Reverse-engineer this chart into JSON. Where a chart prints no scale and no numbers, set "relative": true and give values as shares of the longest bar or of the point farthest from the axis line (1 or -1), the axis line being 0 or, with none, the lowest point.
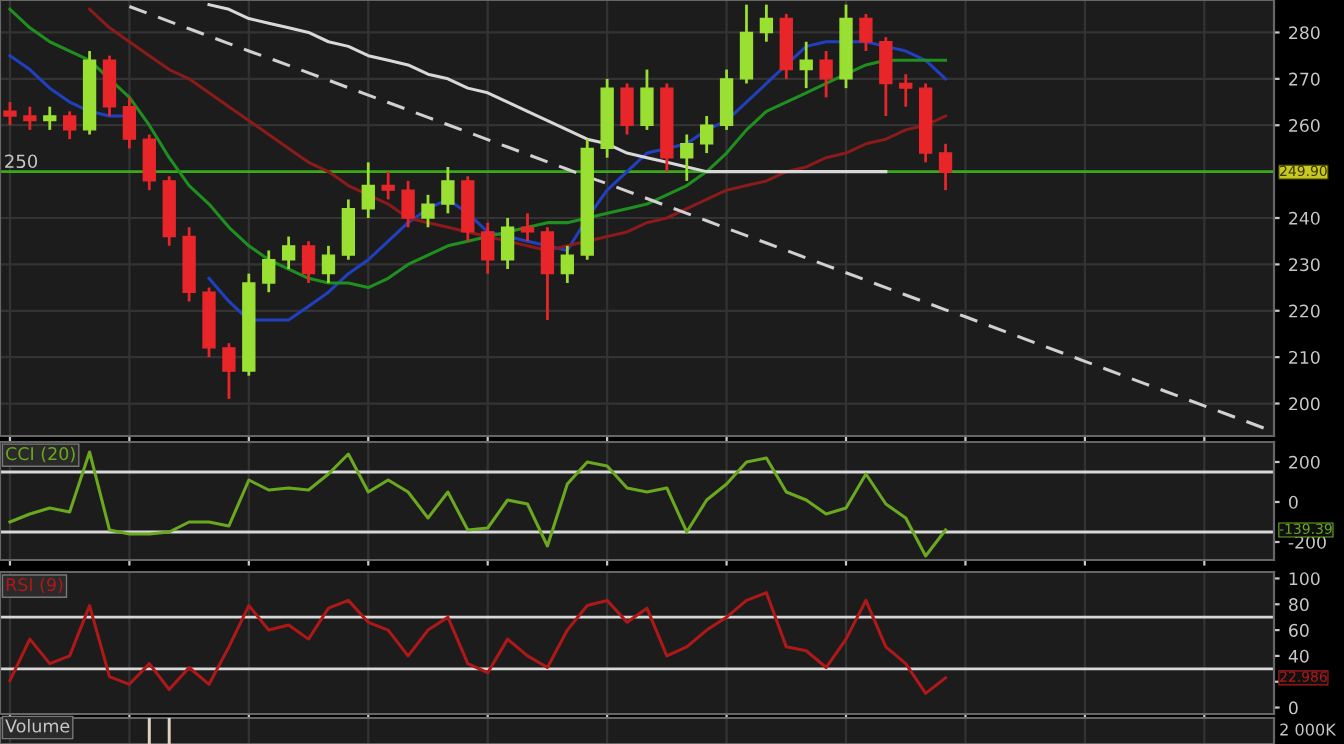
{
  "chart_data": [
    {
      "type": "candlestick",
      "categories": [
        null,
        null,
        null,
        null,
        null,
        null,
        null,
        null,
        null,
        null,
        null,
        null,
        null,
        null,
        null,
        null,
        null,
        null,
        null,
        null,
        null,
        null,
        null,
        null,
        null,
        null,
        null,
        null,
        null,
        null,
        null,
        null,
        null,
        null,
        null,
        null,
        null,
        null,
        null,
        null,
        null,
        null,
        null,
        null,
        null,
        null,
        null,
        null,
        null,
        null,
        null,
        null,
        null,
        null,
        null,
        null,
        null,
        null,
        null,
        null,
        null,
        null,
        null,
        null
      ],
      "ohlc": [
        [
          263,
          265,
          260,
          262
        ],
        [
          262,
          264,
          259,
          261
        ],
        [
          261,
          264,
          259,
          262
        ],
        [
          262,
          263,
          257,
          259
        ],
        [
          259,
          276,
          258,
          274
        ],
        [
          274,
          275,
          262,
          264
        ],
        [
          264,
          266,
          255,
          257
        ],
        [
          257,
          258,
          246,
          248
        ],
        [
          248,
          249,
          234,
          236
        ],
        [
          236,
          238,
          222,
          224
        ],
        [
          224,
          225,
          210,
          212
        ],
        [
          212,
          213,
          201,
          207
        ],
        [
          207,
          228,
          206,
          226
        ],
        [
          226,
          233,
          224,
          231
        ],
        [
          231,
          236,
          229,
          234
        ],
        [
          234,
          235,
          226,
          228
        ],
        [
          228,
          234,
          226,
          232
        ],
        [
          232,
          244,
          231,
          242
        ],
        [
          242,
          252,
          240,
          247
        ],
        [
          247,
          250,
          244,
          246
        ],
        [
          246,
          248,
          238,
          240
        ],
        [
          240,
          245,
          238,
          243
        ],
        [
          243,
          251,
          241,
          248
        ],
        [
          248,
          249,
          235,
          237
        ],
        [
          237,
          239,
          228,
          231
        ],
        [
          231,
          240,
          229,
          238
        ],
        [
          238,
          241,
          235,
          237
        ],
        [
          237,
          238,
          218,
          228
        ],
        [
          228,
          234,
          226,
          232
        ],
        [
          232,
          257,
          231,
          255
        ],
        [
          255,
          270,
          253,
          268
        ],
        [
          268,
          269,
          258,
          260
        ],
        [
          260,
          272,
          259,
          268
        ],
        [
          268,
          269,
          250,
          253
        ],
        [
          253,
          258,
          248,
          256
        ],
        [
          256,
          262,
          254,
          260
        ],
        [
          260,
          272,
          259,
          270
        ],
        [
          270,
          286,
          269,
          280
        ],
        [
          280,
          286,
          278,
          283
        ],
        [
          283,
          284,
          270,
          272
        ],
        [
          272,
          278,
          268,
          274
        ],
        [
          274,
          276,
          266,
          270
        ],
        [
          270,
          286,
          268,
          283
        ],
        [
          283,
          284,
          276,
          278
        ],
        [
          278,
          279,
          262,
          269
        ],
        [
          269,
          271,
          264,
          268
        ],
        [
          268,
          269,
          252,
          254
        ],
        [
          254,
          256,
          246,
          249.9
        ],
        null,
        null,
        null,
        null,
        null,
        null,
        null,
        null,
        null,
        null,
        null,
        null,
        null,
        null,
        null,
        null
      ],
      "colors": [
        "#e8262a",
        "#e8262a",
        "#99e033",
        "#e8262a",
        "#99e033",
        "#e8262a",
        "#e8262a",
        "#e8262a",
        "#e8262a",
        "#e8262a",
        "#e8262a",
        "#e8262a",
        "#99e033",
        "#99e033",
        "#99e033",
        "#e8262a",
        "#99e033",
        "#99e033",
        "#99e033",
        "#e8262a",
        "#e8262a",
        "#99e033",
        "#99e033",
        "#e8262a",
        "#e8262a",
        "#99e033",
        "#e8262a",
        "#e8262a",
        "#99e033",
        "#99e033",
        "#99e033",
        "#e8262a",
        "#99e033",
        "#e8262a",
        "#99e033",
        "#99e033",
        "#99e033",
        "#99e033",
        "#99e033",
        "#e8262a",
        "#99e033",
        "#e8262a",
        "#99e033",
        "#e8262a",
        "#e8262a",
        "#e8262a",
        "#e8262a",
        "#e8262a",
        null,
        null,
        null,
        null,
        null,
        null,
        null,
        null,
        null,
        null,
        null,
        null,
        null,
        null,
        null,
        null
      ],
      "series": [
        {
          "type": "line",
          "color": "#2040c0",
          "values": [
            275,
            272,
            268,
            265,
            263,
            262,
            262,
            null,
            null,
            null,
            227,
            222,
            218,
            218,
            218,
            221,
            224,
            228,
            231,
            235,
            239,
            242,
            244,
            241,
            237,
            236,
            235,
            234,
            233,
            240,
            246,
            250,
            254,
            255,
            256,
            259,
            261,
            265,
            269,
            273,
            277,
            278,
            278,
            278,
            277,
            276,
            274,
            270,
            null,
            null,
            null,
            null,
            null,
            null,
            null,
            null,
            null,
            null,
            null,
            null,
            null,
            null,
            null,
            null
          ]
        },
        {
          "type": "line",
          "color": "#1f8f1f",
          "values": [
            285,
            281,
            278,
            276,
            274,
            270,
            266,
            260,
            253,
            247,
            243,
            238,
            234,
            231,
            229,
            227,
            226,
            226,
            225,
            227,
            230,
            232,
            234,
            235,
            236,
            237,
            238,
            239,
            239,
            240,
            241,
            242,
            243,
            245,
            247,
            250,
            254,
            259,
            263,
            265,
            267,
            269,
            271,
            273,
            274,
            274,
            274,
            274,
            null,
            null,
            null,
            null,
            null,
            null,
            null,
            null,
            null,
            null,
            null,
            null,
            null,
            null,
            null,
            null
          ]
        },
        {
          "type": "line",
          "color": "#8b1a1a",
          "values": [
            null,
            null,
            null,
            null,
            285,
            281,
            278,
            275,
            272,
            270,
            267,
            264,
            261,
            258,
            255,
            252,
            250,
            247,
            245,
            243,
            240,
            239,
            238,
            237,
            236,
            235,
            234,
            233,
            234,
            235,
            236,
            237,
            239,
            240,
            242,
            244,
            246,
            247,
            248,
            250,
            251,
            253,
            254,
            256,
            257,
            259,
            260,
            262,
            null,
            null,
            null,
            null,
            null,
            null,
            null,
            null,
            null,
            null,
            null,
            null,
            null,
            null,
            null,
            null
          ]
        },
        {
          "type": "line",
          "color": "#d8d8d8",
          "values": [
            null,
            null,
            null,
            null,
            null,
            null,
            null,
            null,
            null,
            null,
            286,
            285,
            283,
            282,
            281,
            280,
            278,
            277,
            275,
            274,
            273,
            271,
            270,
            268,
            267,
            265,
            263,
            261,
            259,
            257,
            256,
            254,
            253,
            252,
            251,
            250,
            250,
            250,
            250,
            250,
            250,
            250,
            250,
            250,
            250,
            null,
            null,
            null,
            null,
            null,
            null,
            null,
            null,
            null,
            null,
            null,
            null,
            null,
            null,
            null,
            null,
            null,
            null,
            null
          ]
        },
        {
          "type": "line",
          "color": "#d0d0d0",
          "line_style": "dashed",
          "values": [
            null,
            null,
            null,
            null,
            null,
            null,
            285.6,
            284.0,
            282.4,
            280.8,
            279.2,
            277.6,
            276.0,
            274.5,
            272.9,
            271.3,
            269.7,
            268.1,
            266.5,
            264.9,
            263.3,
            261.7,
            260.1,
            258.5,
            256.9,
            255.3,
            253.7,
            252.1,
            250.5,
            248.9,
            247.4,
            245.8,
            244.2,
            242.6,
            241.0,
            239.4,
            237.8,
            236.2,
            234.6,
            233.0,
            231.4,
            229.8,
            228.2,
            226.6,
            225.0,
            223.4,
            221.8,
            220.2,
            218.7,
            217.1,
            215.5,
            213.9,
            212.3,
            210.7,
            209.1,
            207.5,
            205.9,
            204.3,
            202.7,
            201.1,
            199.5,
            197.9,
            196.3,
            194.7
          ]
        }
      ],
      "ylim": [
        193,
        287
      ],
      "yticks": [
        200,
        210,
        220,
        230,
        240,
        260,
        270,
        280
      ],
      "grid": true,
      "tick_labels": "y",
      "ref_lines": [
        {
          "axis": "y",
          "value": 250,
          "label": "250",
          "color": "#3aaa1a"
        }
      ],
      "annotations": [
        "249.90"
      ]
    },
    {
      "type": "line",
      "title": "CCI (20)",
      "categories": [
        null,
        null,
        null,
        null,
        null,
        null,
        null,
        null,
        null,
        null,
        null,
        null,
        null,
        null,
        null,
        null,
        null,
        null,
        null,
        null,
        null,
        null,
        null,
        null,
        null,
        null,
        null,
        null,
        null,
        null,
        null,
        null,
        null,
        null,
        null,
        null,
        null,
        null,
        null,
        null,
        null,
        null,
        null,
        null,
        null,
        null,
        null,
        null,
        null,
        null,
        null,
        null,
        null,
        null,
        null,
        null,
        null,
        null,
        null,
        null,
        null,
        null,
        null,
        null
      ],
      "series": [
        {
          "type": "line",
          "color": "#6aa820",
          "values": [
            -100,
            -60,
            -30,
            -50,
            250,
            -140,
            -160,
            -160,
            -150,
            -100,
            -100,
            -120,
            110,
            60,
            70,
            60,
            140,
            240,
            50,
            110,
            50,
            -80,
            50,
            -140,
            -130,
            10,
            -10,
            -220,
            90,
            200,
            180,
            70,
            50,
            70,
            -150,
            10,
            90,
            200,
            220,
            50,
            10,
            -60,
            -30,
            140,
            -10,
            -80,
            -270,
            -140,
            null,
            null,
            null,
            null,
            null,
            null,
            null,
            null,
            null,
            null,
            null,
            null,
            null,
            null,
            null,
            null
          ]
        }
      ],
      "ylim": [
        -290,
        300
      ],
      "yticks": [
        -200,
        0,
        200
      ],
      "grid": "x",
      "tick_labels": "y",
      "ref_lines": [
        {
          "axis": "y",
          "value": 150,
          "color": "#d8d8d8"
        },
        {
          "axis": "y",
          "value": -150,
          "color": "#d8d8d8"
        }
      ],
      "annotations": [
        "-139.39"
      ]
    },
    {
      "type": "line",
      "title": "RSI (9)",
      "categories": [
        null,
        null,
        null,
        null,
        null,
        null,
        null,
        null,
        null,
        null,
        null,
        null,
        null,
        null,
        null,
        null,
        null,
        null,
        null,
        null,
        null,
        null,
        null,
        null,
        null,
        null,
        null,
        null,
        null,
        null,
        null,
        null,
        null,
        null,
        null,
        null,
        null,
        null,
        null,
        null,
        null,
        null,
        null,
        null,
        null,
        null,
        null,
        null,
        null,
        null,
        null,
        null,
        null,
        null,
        null,
        null,
        null,
        null,
        null,
        null,
        null,
        null,
        null,
        null
      ],
      "series": [
        {
          "type": "line",
          "color": "#b01818",
          "values": [
            21,
            53,
            34,
            40,
            79,
            24,
            18,
            34,
            14,
            31,
            18,
            47,
            79,
            60,
            64,
            53,
            77,
            83,
            66,
            60,
            40,
            60,
            70,
            34,
            27,
            53,
            40,
            31,
            60,
            79,
            83,
            66,
            77,
            40,
            47,
            60,
            70,
            83,
            89,
            47,
            44,
            31,
            53,
            83,
            47,
            34,
            11,
            23,
            null,
            null,
            null,
            null,
            null,
            null,
            null,
            null,
            null,
            null,
            null,
            null,
            null,
            null,
            null,
            null
          ]
        }
      ],
      "ylim": [
        -5,
        105
      ],
      "yticks": [
        0,
        {
          "value": 20,
          "label": null
        },
        40,
        60,
        80,
        100
      ],
      "grid": "x",
      "tick_labels": "y",
      "ref_lines": [
        {
          "axis": "y",
          "value": 70,
          "color": "#d8d8d8"
        },
        {
          "axis": "y",
          "value": 30,
          "color": "#d8d8d8"
        }
      ],
      "annotations": [
        "22.986"
      ]
    },
    {
      "type": "bar",
      "title": "Volume",
      "relative": true,
      "color": "#e0d0c0",
      "categories": [
        null,
        null,
        null,
        null,
        null,
        null,
        null,
        null,
        null,
        null,
        null,
        null,
        null,
        null,
        null,
        null,
        null,
        null,
        null,
        null,
        null,
        null,
        null,
        null,
        null,
        null,
        null,
        null,
        null,
        null,
        null,
        null,
        null,
        null,
        null,
        null,
        null,
        null,
        null,
        null,
        null,
        null,
        null,
        null,
        null,
        null,
        null,
        null,
        null,
        null,
        null,
        null,
        null,
        null,
        null,
        null,
        null,
        null,
        null,
        null,
        null,
        null,
        null,
        null
      ],
      "values": [
        null,
        null,
        null,
        null,
        null,
        null,
        null,
        1,
        1,
        null,
        null,
        null,
        null,
        null,
        null,
        null,
        null,
        null,
        null,
        null,
        null,
        null,
        null,
        null,
        null,
        null,
        null,
        null,
        null,
        null,
        null,
        null,
        null,
        null,
        null,
        null,
        null,
        null,
        null,
        null,
        null,
        null,
        null,
        null,
        null,
        null,
        null,
        null,
        null,
        null,
        null,
        null,
        null,
        null,
        null,
        null,
        null,
        null,
        null,
        null,
        null,
        null,
        null,
        null
      ],
      "grid": "x",
      "tick_labels": false,
      "annotations": [
        "2 000K"
      ]
    }
  ]
}
